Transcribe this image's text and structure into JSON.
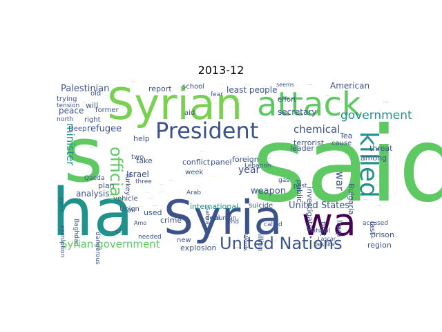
{
  "figure": {
    "title": "2013-12"
  },
  "chart_data": {
    "type": "wordcloud",
    "title": "2013-12",
    "words": [
      {
        "text": "said",
        "color": "#5ec962"
      },
      {
        "text": "ha",
        "color": "#21918c"
      },
      {
        "text": "Syrian",
        "color": "#7ad151"
      },
      {
        "text": "Syria",
        "color": "#3b528b"
      },
      {
        "text": "attack",
        "color": "#5ec962"
      },
      {
        "text": "wa",
        "color": "#440154"
      },
      {
        "text": "s",
        "color": "#5ec962"
      },
      {
        "text": "President",
        "color": "#3b528b"
      },
      {
        "text": "United Nations",
        "color": "#3b528b"
      },
      {
        "text": "killed",
        "color": "#21918c"
      },
      {
        "text": "official",
        "color": "#5ec962"
      },
      {
        "text": "government",
        "color": "#21918c"
      },
      {
        "text": "Syrian government",
        "color": "#5ec962"
      },
      {
        "text": "chemical",
        "color": "#3b528b"
      },
      {
        "text": "minister",
        "color": "#21918c"
      },
      {
        "text": "war",
        "color": "#3b528b"
      },
      {
        "text": "year",
        "color": "#3b528b"
      },
      {
        "text": "United States",
        "color": "#3b528b"
      },
      {
        "text": "refugee",
        "color": "#3b528b"
      },
      {
        "text": "weapon",
        "color": "#3b528b"
      },
      {
        "text": "Palestinian",
        "color": "#3b528b"
      },
      {
        "text": "peace",
        "color": "#3b528b"
      },
      {
        "text": "least people",
        "color": "#3b528b"
      },
      {
        "text": "American",
        "color": "#3b528b"
      },
      {
        "text": "report",
        "color": "#3b528b"
      },
      {
        "text": "secretary",
        "color": "#3b528b"
      },
      {
        "text": "analysis",
        "color": "#3b528b"
      },
      {
        "text": "international",
        "color": "#21918c"
      },
      {
        "text": "Israel",
        "color": "#3b528b"
      },
      {
        "text": "plan",
        "color": "#3b528b"
      },
      {
        "text": "conflict",
        "color": "#3b528b"
      },
      {
        "text": "panel",
        "color": "#3b528b"
      },
      {
        "text": "foreign",
        "color": "#3b528b"
      },
      {
        "text": "prison",
        "color": "#3b528b"
      },
      {
        "text": "region",
        "color": "#3b528b"
      },
      {
        "text": "explosion",
        "color": "#3b528b"
      },
      {
        "text": "terrorist",
        "color": "#3b528b"
      },
      {
        "text": "leader",
        "color": "#3b528b"
      },
      {
        "text": "threat",
        "color": "#3b528b"
      },
      {
        "text": "among",
        "color": "#3b528b"
      },
      {
        "text": "cause",
        "color": "#3b528b"
      },
      {
        "text": "Tea",
        "color": "#3b528b"
      },
      {
        "text": "last",
        "color": "#3b528b"
      },
      {
        "text": "Iraqi",
        "color": "#3b528b"
      },
      {
        "text": "first",
        "color": "#3b528b"
      },
      {
        "text": "Bulgaria",
        "color": "#3b528b"
      },
      {
        "text": "investigator",
        "color": "#3b528b"
      },
      {
        "text": "public",
        "color": "#3b528b"
      },
      {
        "text": "help",
        "color": "#3b528b"
      },
      {
        "text": "take",
        "color": "#3b528b"
      },
      {
        "text": "week",
        "color": "#3b528b"
      },
      {
        "text": "used",
        "color": "#3b528b"
      },
      {
        "text": "crime",
        "color": "#3b528b"
      },
      {
        "text": "suicide",
        "color": "#3b528b"
      },
      {
        "text": "million",
        "color": "#3b528b"
      },
      {
        "text": "Lebanon",
        "color": "#3b528b"
      },
      {
        "text": "called",
        "color": "#3b528b"
      },
      {
        "text": "accused",
        "color": "#3b528b"
      },
      {
        "text": "fear",
        "color": "#3b528b"
      },
      {
        "text": "will",
        "color": "#3b528b"
      },
      {
        "text": "right",
        "color": "#3b528b"
      },
      {
        "text": "trying",
        "color": "#3b528b"
      },
      {
        "text": "tension",
        "color": "#3b528b"
      },
      {
        "text": "old",
        "color": "#3b528b"
      },
      {
        "text": "school",
        "color": "#3b528b"
      },
      {
        "text": "effort",
        "color": "#3b528b"
      },
      {
        "text": "former",
        "color": "#3b528b"
      },
      {
        "text": "aid",
        "color": "#3b528b"
      },
      {
        "text": "two",
        "color": "#3b528b"
      },
      {
        "text": "vehicle",
        "color": "#3b528b"
      },
      {
        "text": "Union",
        "color": "#3b528b"
      },
      {
        "text": "Turkey",
        "color": "#3b528b"
      },
      {
        "text": "Qaeda",
        "color": "#3b528b"
      },
      {
        "text": "Baghdad",
        "color": "#3b528b"
      },
      {
        "text": "corruption",
        "color": "#3b528b"
      },
      {
        "text": "dangerous",
        "color": "#3b528b"
      },
      {
        "text": "oil",
        "color": "#3b528b"
      },
      {
        "text": "new",
        "color": "#3b528b"
      },
      {
        "text": "deal",
        "color": "#3b528b"
      },
      {
        "text": "end",
        "color": "#3b528b"
      },
      {
        "text": "human",
        "color": "#3b528b"
      },
      {
        "text": "Arab",
        "color": "#3b528b"
      },
      {
        "text": "three",
        "color": "#3b528b"
      },
      {
        "text": "gas",
        "color": "#3b528b"
      },
      {
        "text": "post",
        "color": "#3b528b"
      },
      {
        "text": "natural",
        "color": "#3b528b"
      },
      {
        "text": "Lascar",
        "color": "#3b528b"
      },
      {
        "text": "Despite",
        "color": "#3b528b"
      },
      {
        "text": "Deep",
        "color": "#3b528b"
      },
      {
        "text": "north",
        "color": "#3b528b"
      },
      {
        "text": "even",
        "color": "#3b528b"
      },
      {
        "text": "needed",
        "color": "#3b528b"
      },
      {
        "text": "Amo",
        "color": "#3b528b"
      },
      {
        "text": "seems",
        "color": "#3b528b"
      },
      {
        "text": "Words",
        "color": "#3b528b"
      },
      {
        "text": "Galera",
        "color": "#3b528b"
      },
      {
        "text": "ci",
        "color": "#3b528b"
      }
    ]
  }
}
